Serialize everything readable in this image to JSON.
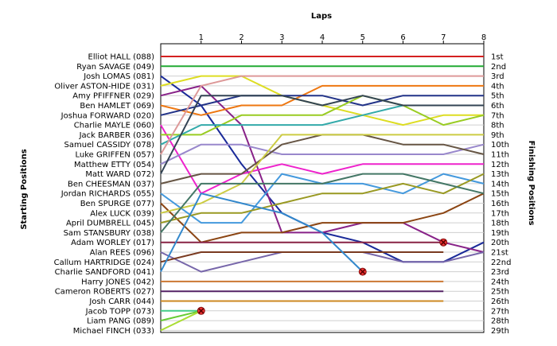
{
  "chart_data": {
    "type": "line",
    "title": "",
    "xlabel": "Laps",
    "ylabel_left": "Starting Positions",
    "ylabel_right": "Finishing Positions",
    "x": [
      0,
      1,
      2,
      3,
      4,
      5,
      6,
      7,
      8
    ],
    "x_tick_labels": [
      "1",
      "2",
      "3",
      "4",
      "5",
      "6",
      "7",
      "8"
    ],
    "y_reversed": true,
    "ylim": [
      1,
      29
    ],
    "grid": "horizontal",
    "finishing_labels": [
      "1st",
      "2nd",
      "3rd",
      "4th",
      "5th",
      "6th",
      "7th",
      "8th",
      "9th",
      "10th",
      "11th",
      "12th",
      "13th",
      "14th",
      "15th",
      "16th",
      "17th",
      "18th",
      "19th",
      "20th",
      "21st",
      "22nd",
      "23rd",
      "24th",
      "25th",
      "26th",
      "27th",
      "28th",
      "29th"
    ],
    "series": [
      {
        "name": "Elliot HALL (088)",
        "color": "#d42020",
        "positions": [
          1,
          1,
          1,
          1,
          1,
          1,
          1,
          1,
          1
        ],
        "retired_lap": null
      },
      {
        "name": "Ryan SAVAGE (049)",
        "color": "#22aa33",
        "positions": [
          2,
          2,
          2,
          2,
          2,
          2,
          2,
          2,
          2
        ],
        "retired_lap": null
      },
      {
        "name": "Josh LOMAS (081)",
        "color": "#1a2a99",
        "positions": [
          3,
          6,
          12,
          17,
          19,
          20,
          22,
          22,
          20
        ],
        "retired_lap": null
      },
      {
        "name": "Oliver ASTON-HIDE (031)",
        "color": "#dddd22",
        "positions": [
          4,
          3,
          3,
          5,
          6,
          7,
          8,
          7,
          7
        ],
        "retired_lap": null
      },
      {
        "name": "Amy PFIFFNER (029)",
        "color": "#882288",
        "positions": [
          5,
          4,
          8,
          19,
          19,
          18,
          18,
          20,
          21
        ],
        "retired_lap": null
      },
      {
        "name": "Ben HAMLET (069)",
        "color": "#ee7711",
        "positions": [
          6,
          7,
          6,
          6,
          4,
          4,
          4,
          4,
          4
        ],
        "retired_lap": null
      },
      {
        "name": "Joshua FORWARD (020)",
        "color": "#223388",
        "positions": [
          7,
          6,
          5,
          5,
          5,
          6,
          5,
          5,
          5
        ],
        "retired_lap": null
      },
      {
        "name": "Charlie MAYLE (060)",
        "color": "#ee22cc",
        "positions": [
          8,
          15,
          13,
          12,
          13,
          12,
          12,
          12,
          12
        ],
        "retired_lap": null
      },
      {
        "name": "Jack BARBER (036)",
        "color": "#99cc22",
        "positions": [
          9,
          9,
          7,
          7,
          7,
          5,
          6,
          8,
          7
        ],
        "retired_lap": null
      },
      {
        "name": "Samuel CASSIDY (078)",
        "color": "#33aaaa",
        "positions": [
          10,
          8,
          8,
          8,
          8,
          7,
          6,
          6,
          6
        ],
        "retired_lap": null
      },
      {
        "name": "Luke GRIFFEN (057)",
        "color": "#dd9999",
        "positions": [
          11,
          4,
          3,
          3,
          3,
          3,
          3,
          3,
          3
        ],
        "retired_lap": null
      },
      {
        "name": "Matthew ETTY (054)",
        "color": "#9988cc",
        "positions": [
          12,
          10,
          10,
          11,
          11,
          11,
          11,
          11,
          10
        ],
        "retired_lap": null
      },
      {
        "name": "Matt WARD (072)",
        "color": "#334455",
        "positions": [
          13,
          5,
          5,
          5,
          6,
          5,
          6,
          6,
          6
        ],
        "retired_lap": null
      },
      {
        "name": "Ben CHEESMAN (037)",
        "color": "#665544",
        "positions": [
          14,
          13,
          13,
          10,
          9,
          9,
          10,
          10,
          11
        ],
        "retired_lap": null
      },
      {
        "name": "Jordan RICHARDS (055)",
        "color": "#4499dd",
        "positions": [
          15,
          18,
          18,
          13,
          14,
          14,
          15,
          13,
          14
        ],
        "retired_lap": null
      },
      {
        "name": "Ben SPURGE (077)",
        "color": "#8b4513",
        "positions": [
          16,
          20,
          19,
          19,
          18,
          18,
          18,
          17,
          15
        ],
        "retired_lap": null
      },
      {
        "name": "Alex LUCK (039)",
        "color": "#cccc44",
        "positions": [
          17,
          16,
          14,
          9,
          9,
          9,
          9,
          9,
          9
        ],
        "retired_lap": null
      },
      {
        "name": "April DUMBRELL (045)",
        "color": "#999922",
        "positions": [
          18,
          17,
          17,
          16,
          15,
          15,
          14,
          15,
          13
        ],
        "retired_lap": null
      },
      {
        "name": "Sam STANSBURY (038)",
        "color": "#447766",
        "positions": [
          19,
          14,
          14,
          14,
          14,
          13,
          13,
          14,
          15
        ],
        "retired_lap": null
      },
      {
        "name": "Adam WORLEY (017)",
        "color": "#882244",
        "positions": [
          20,
          20,
          20,
          20,
          20,
          20,
          20,
          20,
          null
        ],
        "retired_lap": 7
      },
      {
        "name": "Alan REES (096)",
        "color": "#7766aa",
        "positions": [
          21,
          23,
          22,
          21,
          21,
          21,
          22,
          22,
          21
        ],
        "retired_lap": null
      },
      {
        "name": "Callum HARTRIDGE (024)",
        "color": "#7a3a20",
        "positions": [
          22,
          21,
          21,
          21,
          21,
          21,
          21,
          21,
          null
        ],
        "retired_lap": null
      },
      {
        "name": "Charlie SANDFORD (041)",
        "color": "#3388cc",
        "positions": [
          23,
          15,
          16,
          17,
          19,
          23,
          null,
          null,
          null
        ],
        "retired_lap": 5
      },
      {
        "name": "Harry JONES (042)",
        "color": "#cc7733",
        "positions": [
          24,
          24,
          24,
          24,
          24,
          24,
          24,
          24,
          null
        ],
        "retired_lap": null
      },
      {
        "name": "Cameron ROBERTS (027)",
        "color": "#552266",
        "positions": [
          25,
          25,
          25,
          25,
          25,
          25,
          25,
          25,
          null
        ],
        "retired_lap": null
      },
      {
        "name": "Josh CARR (044)",
        "color": "#cc8822",
        "positions": [
          26,
          26,
          26,
          26,
          26,
          26,
          26,
          26,
          null
        ],
        "retired_lap": null
      },
      {
        "name": "Jacob TOPP (073)",
        "color": "#44cc88",
        "positions": [
          27,
          27,
          null,
          null,
          null,
          null,
          null,
          null,
          null
        ],
        "retired_lap": 1
      },
      {
        "name": "Liam PANG (089)",
        "color": "#66cc33",
        "positions": [
          28,
          27,
          null,
          null,
          null,
          null,
          null,
          null,
          null
        ],
        "retired_lap": null
      },
      {
        "name": "Michael FINCH (033)",
        "color": "#aadd33",
        "positions": [
          29,
          27,
          null,
          null,
          null,
          null,
          null,
          null,
          null
        ],
        "retired_lap": null
      }
    ]
  }
}
